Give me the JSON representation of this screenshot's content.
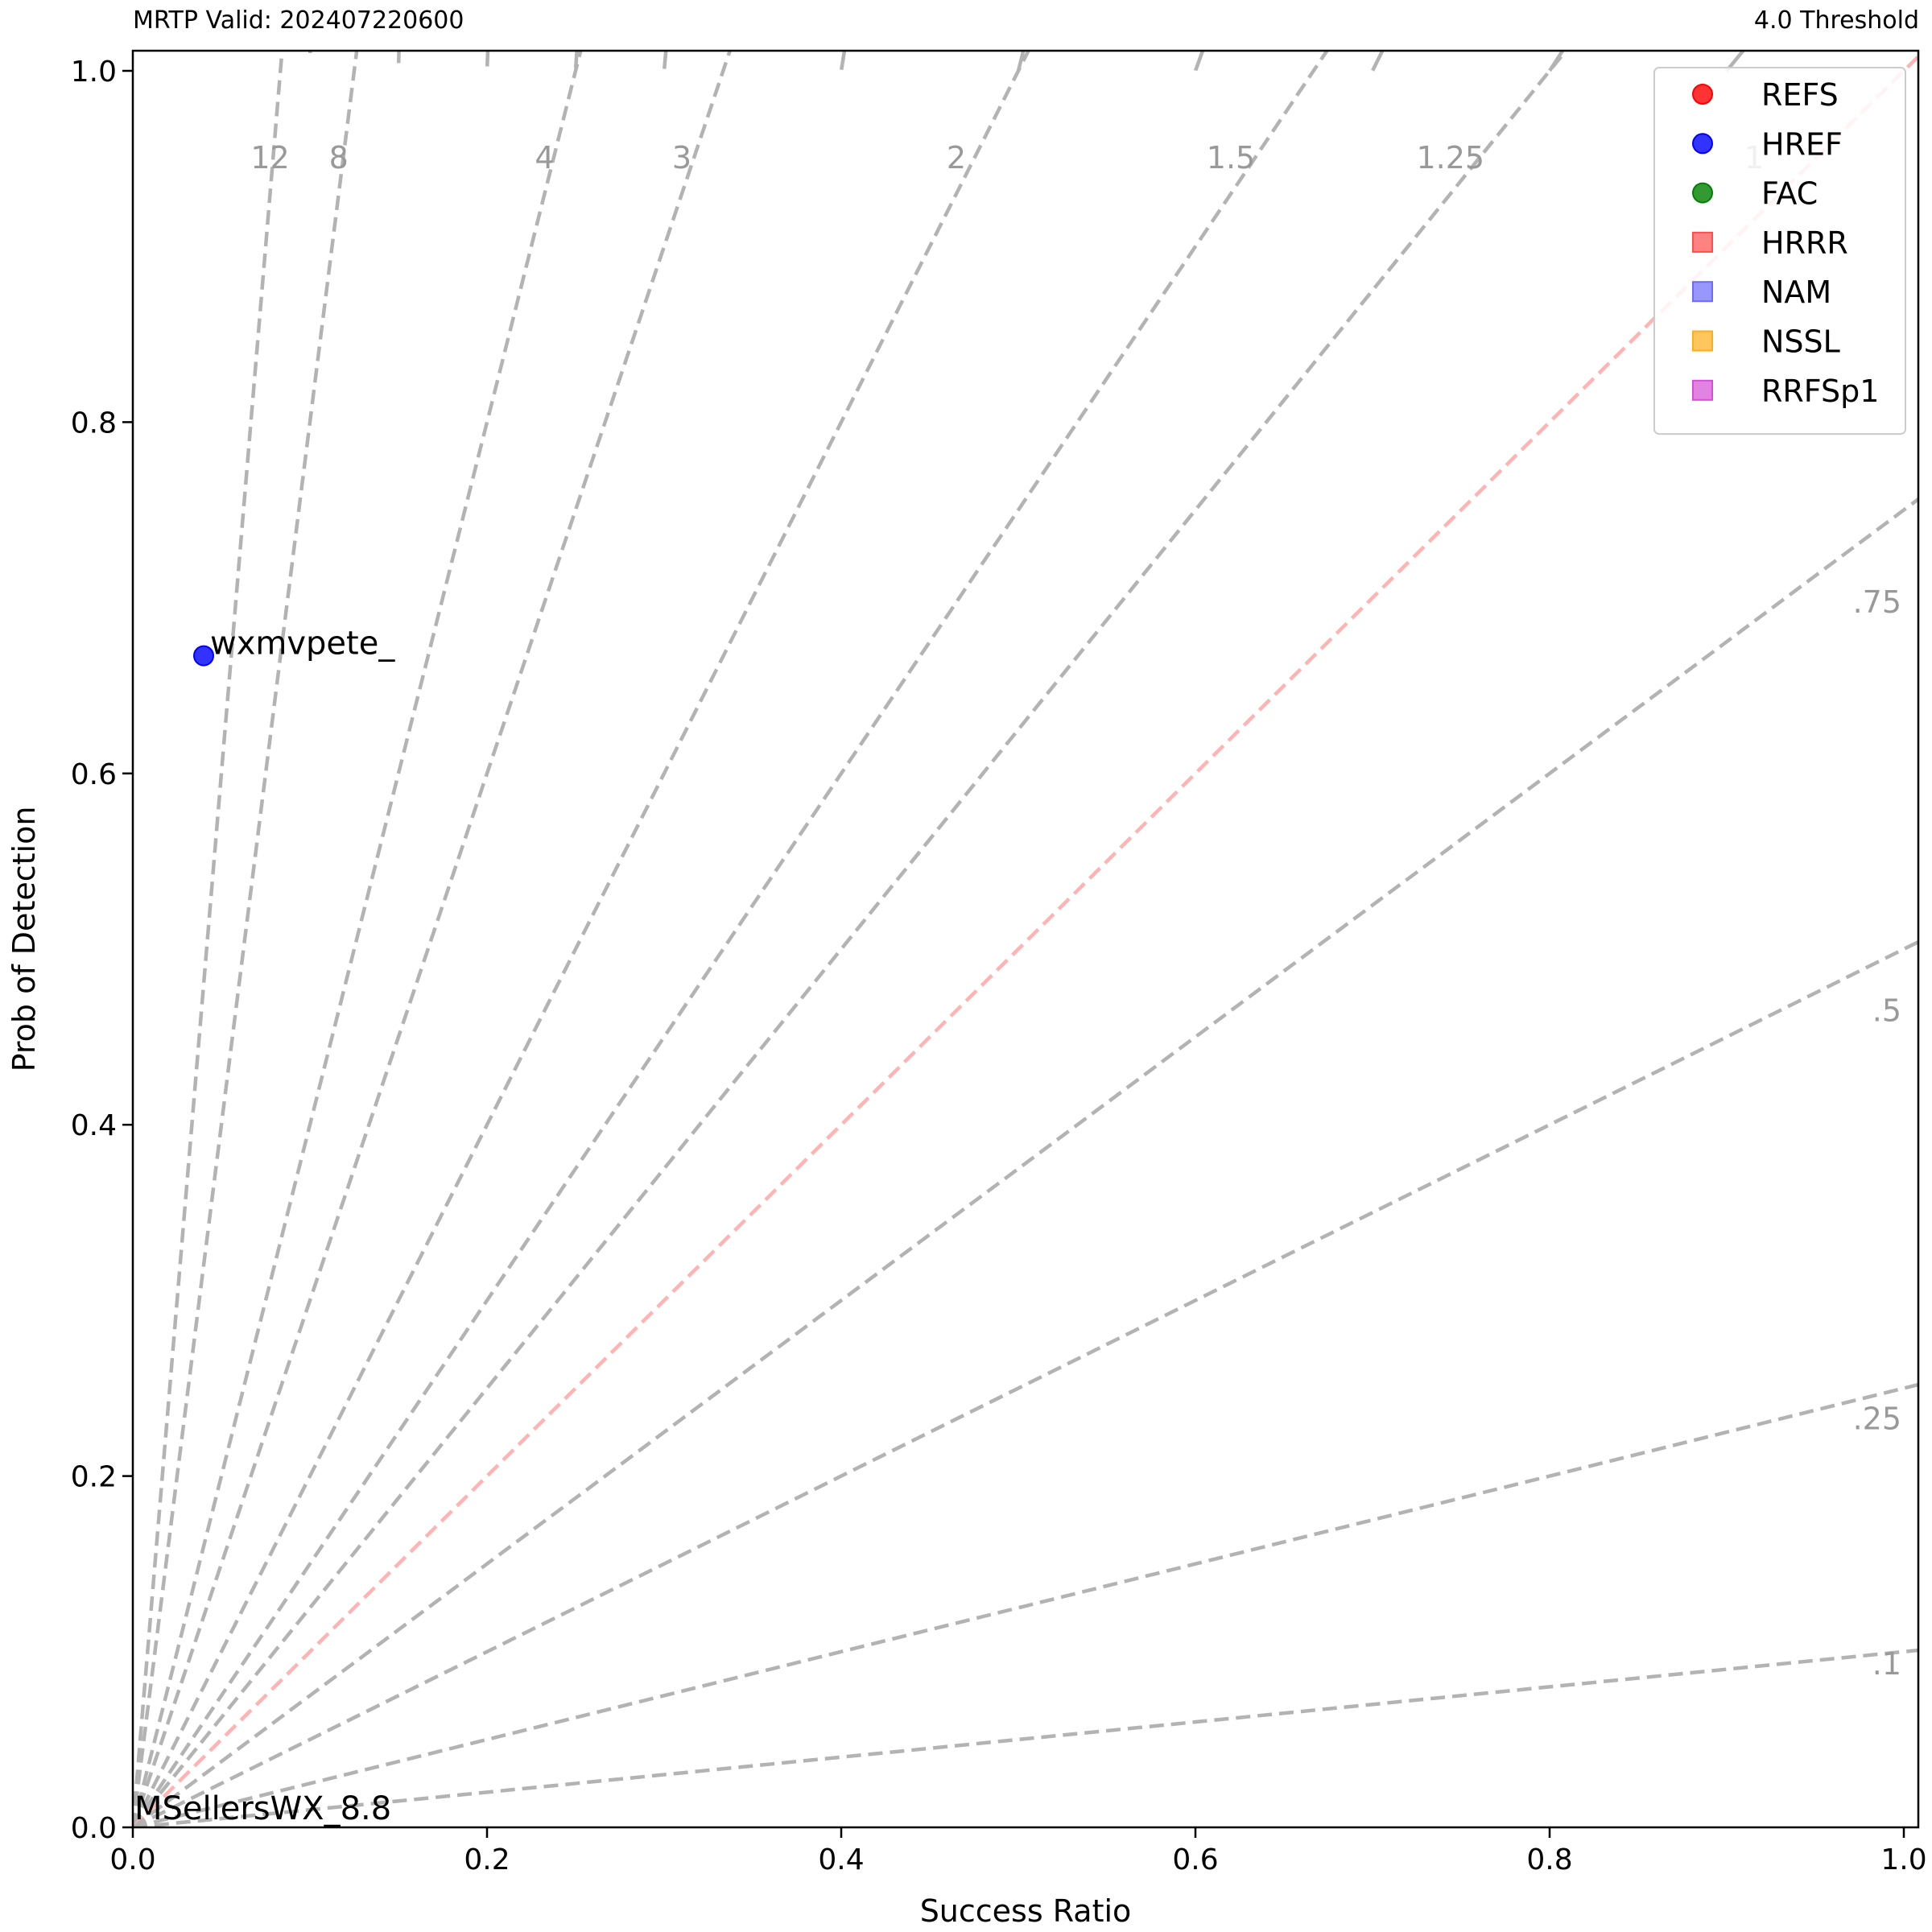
{
  "header": {
    "left": "MRTP Valid: 202407220600",
    "right": "4.0 Threshold"
  },
  "chart_data": {
    "type": "scatter",
    "title": "",
    "xlabel": "Success Ratio",
    "ylabel": "Prob of Detection",
    "xlim": [
      0.0,
      1.0
    ],
    "ylim": [
      0.0,
      1.0
    ],
    "xticks": [
      "0.0",
      "0.2",
      "0.4",
      "0.6",
      "0.8",
      "1.0"
    ],
    "yticks": [
      "0.0",
      "0.2",
      "0.4",
      "0.6",
      "0.8",
      "1.0"
    ],
    "grid": false,
    "legend_position": "top-right",
    "legend": [
      {
        "name": "REFS",
        "marker": "circle",
        "color": "#ff0000"
      },
      {
        "name": "HREF",
        "marker": "circle",
        "color": "#0000ff"
      },
      {
        "name": "FAC",
        "marker": "circle",
        "color": "#008000"
      },
      {
        "name": "HRRR",
        "marker": "square",
        "color": "#ff4d4d"
      },
      {
        "name": "NAM",
        "marker": "square",
        "color": "#6b6bff"
      },
      {
        "name": "NSSL",
        "marker": "square",
        "color": "#ffae1a"
      },
      {
        "name": "RRFSp1",
        "marker": "square",
        "color": "#d64dd6"
      }
    ],
    "points": [
      {
        "series": "HREF",
        "x": 0.04,
        "y": 0.667,
        "label": "wxmvpete_",
        "color": "#0000ff"
      }
    ],
    "annotations": [
      {
        "text": "MSellersWX_8.8",
        "x": 0.0,
        "y": 0.0
      }
    ],
    "csi_contours": [
      0.05,
      0.1,
      0.15,
      0.2,
      0.25,
      0.3,
      0.4,
      0.5,
      0.6,
      0.7,
      0.8,
      0.9
    ],
    "bias_lines": [
      {
        "bias": 12,
        "label": "12"
      },
      {
        "bias": 8,
        "label": "8"
      },
      {
        "bias": 4,
        "label": "4"
      },
      {
        "bias": 3,
        "label": "3"
      },
      {
        "bias": 2,
        "label": "2"
      },
      {
        "bias": 1.5,
        "label": "1.5"
      },
      {
        "bias": 1.25,
        "label": "1.25"
      },
      {
        "bias": 1,
        "label": "1"
      },
      {
        "bias": 0.75,
        "label": ".75"
      },
      {
        "bias": 0.5,
        "label": ".5"
      },
      {
        "bias": 0.25,
        "label": ".25"
      },
      {
        "bias": 0.1,
        "label": ".1"
      }
    ],
    "colors": {
      "csi": "#b3b3b3",
      "bias": "#b3b3b3",
      "bias_one": "#ffb3b3",
      "bias_label": "#999999"
    }
  }
}
